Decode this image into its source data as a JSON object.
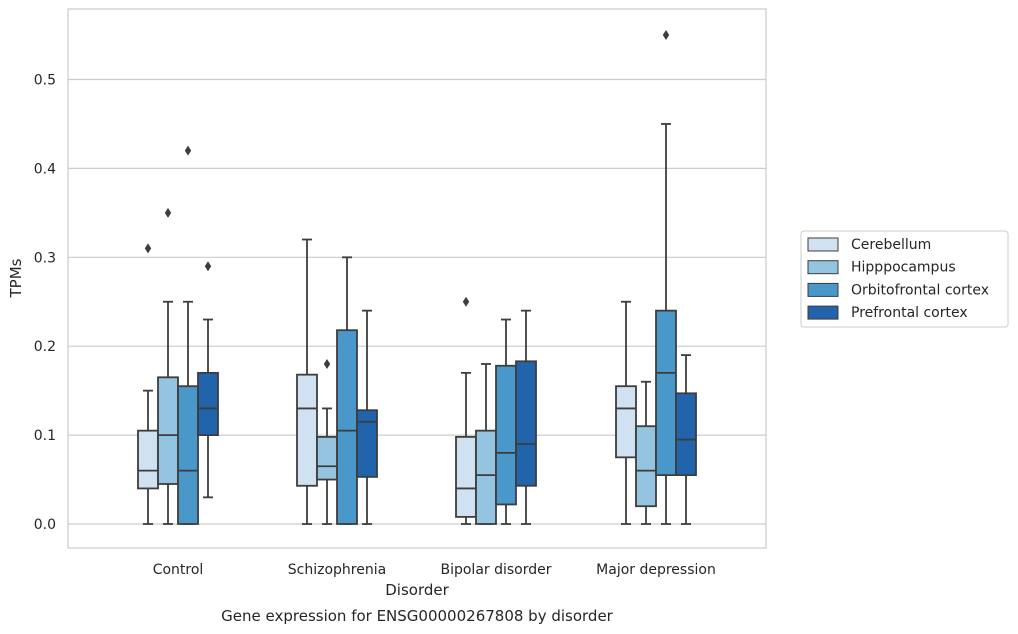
{
  "chart_data": {
    "type": "box",
    "xlabel": "Disorder",
    "ylabel": "TPMs",
    "caption": "Gene expression for ENSG00000267808 by disorder",
    "ylim": [
      -0.027,
      0.58
    ],
    "yticks": [
      "0.0",
      "0.1",
      "0.2",
      "0.3",
      "0.4",
      "0.5"
    ],
    "categories": [
      "Control",
      "Schizophrenia",
      "Bipolar disorder",
      "Major depression"
    ],
    "grid": "horizontal",
    "legend_position": "right",
    "series": [
      {
        "name": "Cerebellum",
        "color": "#d0e1f2",
        "boxes": [
          {
            "whisker_low": 0.0,
            "q1": 0.04,
            "median": 0.06,
            "q3": 0.105,
            "whisker_high": 0.15,
            "outliers": [
              0.31
            ]
          },
          {
            "whisker_low": 0.0,
            "q1": 0.043,
            "median": 0.13,
            "q3": 0.168,
            "whisker_high": 0.32,
            "outliers": []
          },
          {
            "whisker_low": 0.0,
            "q1": 0.008,
            "median": 0.04,
            "q3": 0.098,
            "whisker_high": 0.17,
            "outliers": [
              0.25
            ]
          },
          {
            "whisker_low": 0.0,
            "q1": 0.075,
            "median": 0.13,
            "q3": 0.155,
            "whisker_high": 0.25,
            "outliers": []
          }
        ]
      },
      {
        "name": "Hipppocampus",
        "color": "#94c4df",
        "boxes": [
          {
            "whisker_low": 0.0,
            "q1": 0.045,
            "median": 0.1,
            "q3": 0.165,
            "whisker_high": 0.25,
            "outliers": [
              0.35
            ]
          },
          {
            "whisker_low": 0.0,
            "q1": 0.05,
            "median": 0.065,
            "q3": 0.098,
            "whisker_high": 0.13,
            "outliers": [
              0.18
            ]
          },
          {
            "whisker_low": 0.0,
            "q1": 0.0,
            "median": 0.055,
            "q3": 0.105,
            "whisker_high": 0.18,
            "outliers": []
          },
          {
            "whisker_low": 0.0,
            "q1": 0.02,
            "median": 0.06,
            "q3": 0.11,
            "whisker_high": 0.16,
            "outliers": []
          }
        ]
      },
      {
        "name": "Orbitofrontal cortex",
        "color": "#4a98c9",
        "boxes": [
          {
            "whisker_low": 0.0,
            "q1": 0.0,
            "median": 0.06,
            "q3": 0.155,
            "whisker_high": 0.25,
            "outliers": [
              0.42
            ]
          },
          {
            "whisker_low": 0.0,
            "q1": 0.0,
            "median": 0.105,
            "q3": 0.218,
            "whisker_high": 0.3,
            "outliers": []
          },
          {
            "whisker_low": 0.0,
            "q1": 0.022,
            "median": 0.08,
            "q3": 0.178,
            "whisker_high": 0.23,
            "outliers": []
          },
          {
            "whisker_low": 0.0,
            "q1": 0.055,
            "median": 0.17,
            "q3": 0.24,
            "whisker_high": 0.45,
            "outliers": [
              0.55
            ]
          }
        ]
      },
      {
        "name": "Prefrontal cortex",
        "color": "#2164ab",
        "boxes": [
          {
            "whisker_low": 0.03,
            "q1": 0.1,
            "median": 0.13,
            "q3": 0.17,
            "whisker_high": 0.23,
            "outliers": [
              0.29
            ]
          },
          {
            "whisker_low": 0.0,
            "q1": 0.053,
            "median": 0.115,
            "q3": 0.128,
            "whisker_high": 0.24,
            "outliers": []
          },
          {
            "whisker_low": 0.0,
            "q1": 0.043,
            "median": 0.09,
            "q3": 0.183,
            "whisker_high": 0.24,
            "outliers": []
          },
          {
            "whisker_low": 0.0,
            "q1": 0.055,
            "median": 0.095,
            "q3": 0.147,
            "whisker_high": 0.19,
            "outliers": []
          }
        ]
      }
    ]
  }
}
